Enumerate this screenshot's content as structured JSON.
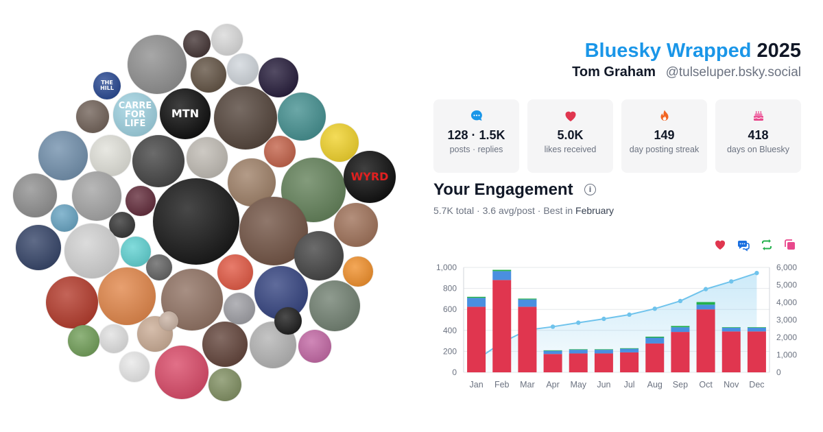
{
  "header": {
    "title_brand": "Bluesky Wrapped",
    "title_year": "2025",
    "display_name": "Tom Graham",
    "handle": "@tulseluper.bsky.social"
  },
  "stats": [
    {
      "icon": "speech-bubble-icon",
      "value": "128 · 1.5K",
      "label": "posts · replies",
      "color": "#1a96e8"
    },
    {
      "icon": "heart-icon",
      "value": "5.0K",
      "label": "likes received",
      "color": "#e0364f"
    },
    {
      "icon": "flame-icon",
      "value": "149",
      "label": "day posting streak",
      "color": "#f26522"
    },
    {
      "icon": "birthday-cake-icon",
      "value": "418",
      "label": "days on Bluesky",
      "color": "#e8488c"
    }
  ],
  "engagement": {
    "title": "Your Engagement",
    "total": "5.7K",
    "total_suffix": " total · ",
    "avg": "3.6 avg/post",
    "best_prefix": " · Best in ",
    "best_month": "February"
  },
  "legend_icons": [
    {
      "icon": "heart-icon",
      "color": "#e0364f"
    },
    {
      "icon": "reply-icon",
      "color": "#1a6fe0"
    },
    {
      "icon": "repost-icon",
      "color": "#22b04b"
    },
    {
      "icon": "quote-icon",
      "color": "#e8488c"
    }
  ],
  "avatars": [
    {
      "label": "",
      "bg": "#8a8a8a"
    },
    {
      "label": "",
      "bg": "#3a2a2a"
    },
    {
      "label": "",
      "bg": "#d8d8d8"
    },
    {
      "label": "",
      "bg": "#5a4a3a"
    },
    {
      "label": "",
      "bg": "#ced4da"
    },
    {
      "label": "",
      "bg": "#1a1030"
    },
    {
      "label": "THE HILL",
      "bg": "#1c3e8c",
      "fg": "#ffffff"
    },
    {
      "label": "CARRE FOR LIFE",
      "bg": "#9ad0e0",
      "fg": "#ffffff"
    },
    {
      "label": "MTN",
      "bg": "#000000",
      "fg": "#ffffff"
    },
    {
      "label": "",
      "bg": "#4a3a30"
    },
    {
      "label": "",
      "bg": "#3a8a8a"
    },
    {
      "label": "",
      "bg": "#6a5a50"
    },
    {
      "label": "",
      "bg": "#f0d020"
    },
    {
      "label": "",
      "bg": "#6a8aa8"
    },
    {
      "label": "",
      "bg": "#e0e0d8"
    },
    {
      "label": "",
      "bg": "#3a3a3a"
    },
    {
      "label": "",
      "bg": "#bdb8b0"
    },
    {
      "label": "",
      "bg": "#c05a40"
    },
    {
      "label": "",
      "bg": "#9a7a60"
    },
    {
      "label": "",
      "bg": "#5a7a50"
    },
    {
      "label": "WYRD",
      "bg": "#000000",
      "fg": "#e02020"
    },
    {
      "label": "",
      "bg": "#8a8a8a"
    },
    {
      "label": "",
      "bg": "#a0a0a0"
    },
    {
      "label": "",
      "bg": "#5a2030"
    },
    {
      "label": "",
      "bg": "#0a0a0a"
    },
    {
      "label": "",
      "bg": "#2a2a2a"
    },
    {
      "label": "",
      "bg": "#60a0c0"
    },
    {
      "label": "",
      "bg": "#9a6a50"
    },
    {
      "label": "",
      "bg": "#6a4a3a"
    },
    {
      "label": "",
      "bg": "#2a3a60"
    },
    {
      "label": "",
      "bg": "#d0d0d0"
    },
    {
      "label": "",
      "bg": "#58d0d0"
    },
    {
      "label": "",
      "bg": "#5a5a5a"
    },
    {
      "label": "",
      "bg": "#3a3a3a"
    },
    {
      "label": "",
      "bg": "#e0503a"
    },
    {
      "label": "",
      "bg": "#f08a20"
    },
    {
      "label": "",
      "bg": "#b03020"
    },
    {
      "label": "",
      "bg": "#e08040"
    },
    {
      "label": "",
      "bg": "#8a6a5a"
    },
    {
      "label": "",
      "bg": "#2a3a7a"
    },
    {
      "label": "",
      "bg": "#6a7a6a"
    },
    {
      "label": "",
      "bg": "#9a9aa0"
    },
    {
      "label": "",
      "bg": "#c8a890"
    },
    {
      "label": "",
      "bg": "#5a3a30"
    },
    {
      "label": "",
      "bg": "#b0b0b0"
    },
    {
      "label": "",
      "bg": "#6a9a50"
    },
    {
      "label": "",
      "bg": "#e0e0e0"
    },
    {
      "label": "",
      "bg": "#c060a0"
    },
    {
      "label": "",
      "bg": "#e8e8e8"
    },
    {
      "label": "",
      "bg": "#d84060"
    },
    {
      "label": "",
      "bg": "#7a8a5a"
    },
    {
      "label": "",
      "bg": "#101010"
    },
    {
      "label": "",
      "bg": "#c8b0a0"
    }
  ],
  "chart_data": {
    "type": "bar",
    "categories": [
      "Jan",
      "Feb",
      "Mar",
      "Apr",
      "May",
      "Jun",
      "Jul",
      "Aug",
      "Sep",
      "Oct",
      "Nov",
      "Dec"
    ],
    "series": [
      {
        "name": "likes",
        "color": "#e0364f",
        "values": [
          625,
          880,
          625,
          175,
          180,
          180,
          190,
          275,
          385,
          600,
          390,
          390
        ]
      },
      {
        "name": "replies",
        "color": "#4a8fe0",
        "values": [
          85,
          85,
          70,
          30,
          35,
          35,
          35,
          55,
          45,
          45,
          35,
          35
        ]
      },
      {
        "name": "reposts",
        "color": "#22b04b",
        "values": [
          10,
          12,
          8,
          5,
          5,
          5,
          5,
          10,
          12,
          25,
          5,
          5
        ]
      }
    ],
    "line": {
      "name": "cumulative",
      "color": "#6fc3ec",
      "axis": "right",
      "values": [
        720,
        1700,
        2420,
        2610,
        2840,
        3060,
        3300,
        3640,
        4080,
        4760,
        5200,
        5680
      ]
    },
    "ylim": [
      0,
      1000
    ],
    "yticks": [
      "0",
      "200",
      "400",
      "600",
      "800",
      "1,000"
    ],
    "y2lim": [
      0,
      6000
    ],
    "y2ticks": [
      "0",
      "1,000",
      "2,000",
      "3,000",
      "4,000",
      "5,000",
      "6,000"
    ],
    "grid": true
  }
}
